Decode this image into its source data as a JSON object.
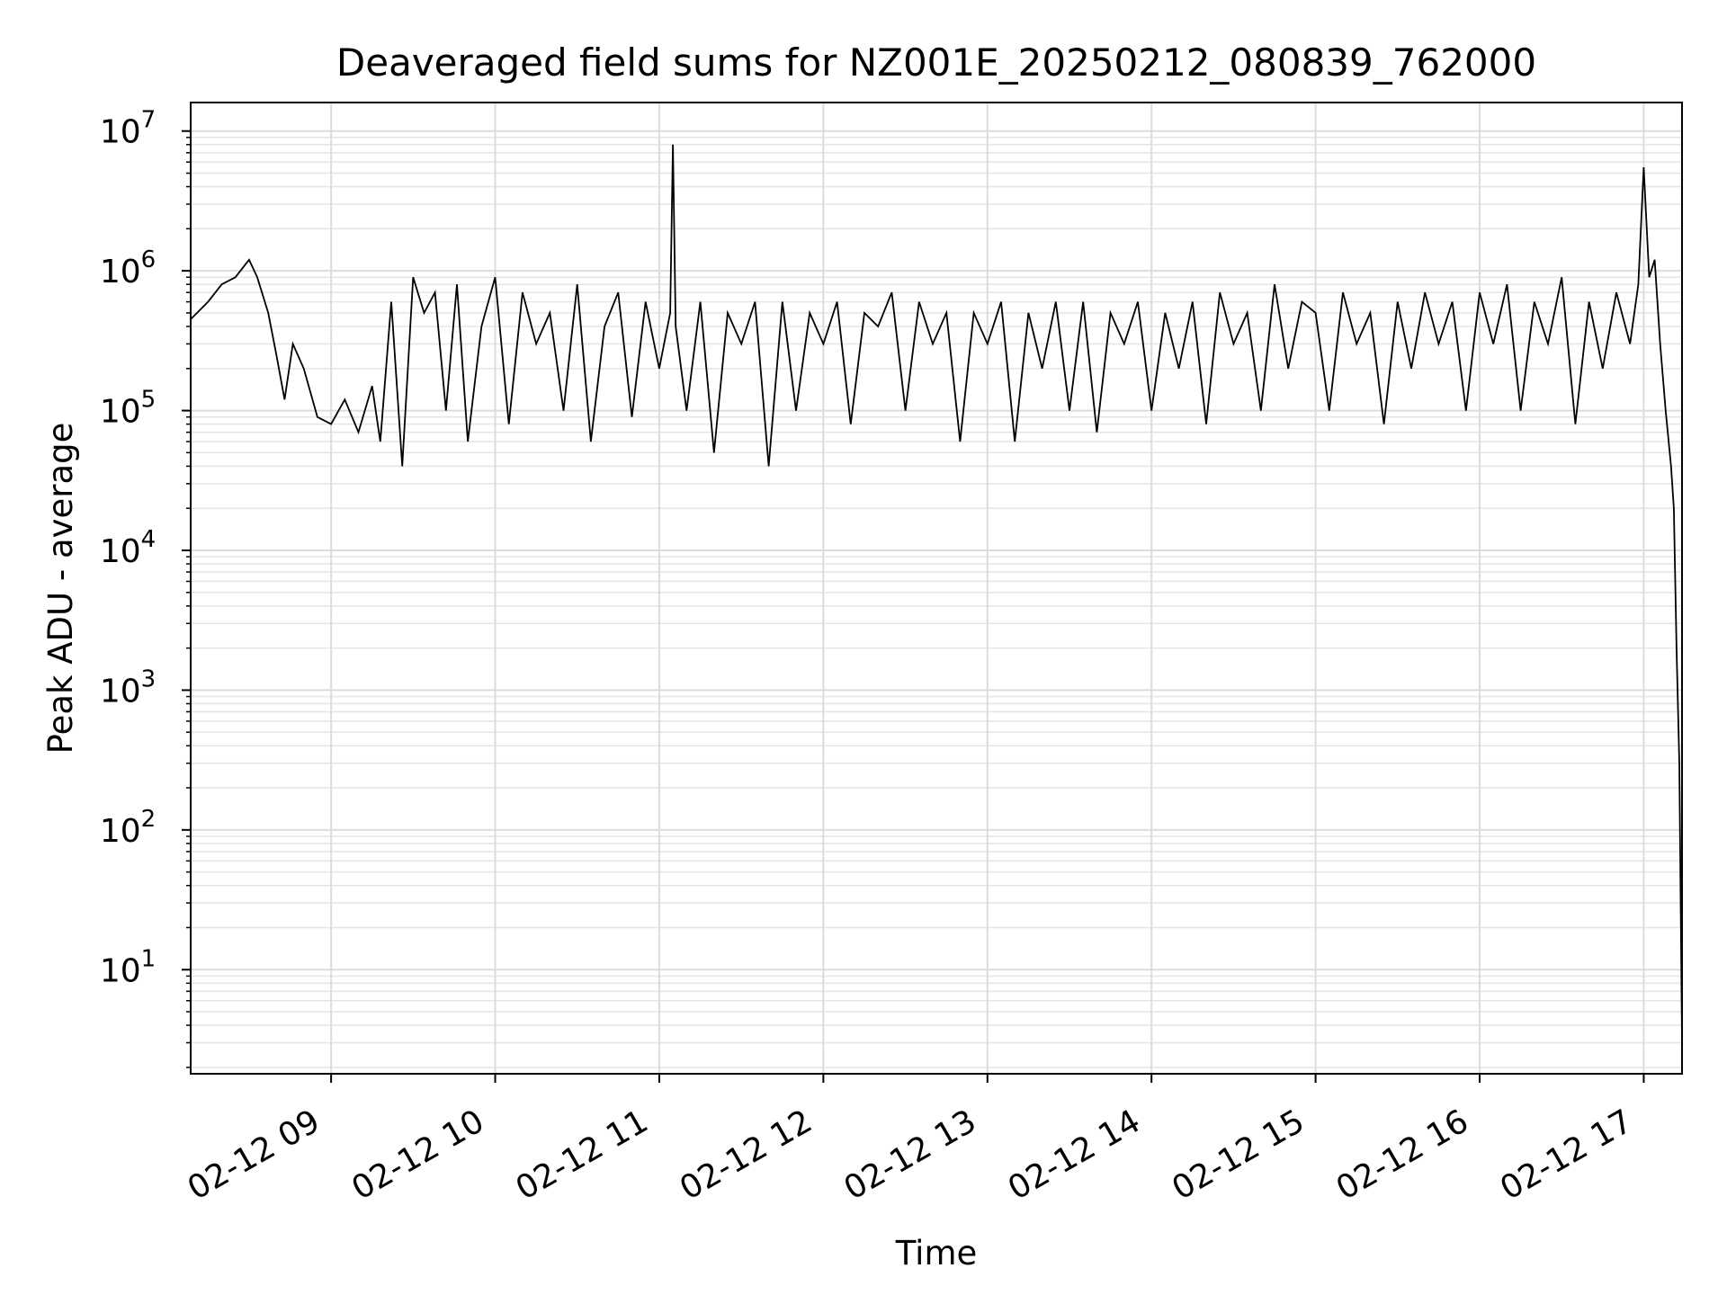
{
  "chart_data": {
    "type": "line",
    "title": "Deaveraged field sums for NZ001E_20250212_080839_762000",
    "xlabel": "Time",
    "ylabel": "Peak ADU - average",
    "x_scale": "time",
    "y_scale": "log",
    "xlim": [
      "2025-02-12 08:08:39",
      "2025-02-12 17:14:00"
    ],
    "ylim": [
      1.8,
      16000000
    ],
    "grid": true,
    "legend": "none",
    "x_ticks": [
      {
        "t": "2025-02-12 09:00",
        "label": "02-12 09"
      },
      {
        "t": "2025-02-12 10:00",
        "label": "02-12 10"
      },
      {
        "t": "2025-02-12 11:00",
        "label": "02-12 11"
      },
      {
        "t": "2025-02-12 12:00",
        "label": "02-12 12"
      },
      {
        "t": "2025-02-12 13:00",
        "label": "02-12 13"
      },
      {
        "t": "2025-02-12 14:00",
        "label": "02-12 14"
      },
      {
        "t": "2025-02-12 15:00",
        "label": "02-12 15"
      },
      {
        "t": "2025-02-12 16:00",
        "label": "02-12 16"
      },
      {
        "t": "2025-02-12 17:00",
        "label": "02-12 17"
      }
    ],
    "y_ticks": [
      {
        "value": 10,
        "base": "10",
        "exp": "1"
      },
      {
        "value": 100,
        "base": "10",
        "exp": "2"
      },
      {
        "value": 1000,
        "base": "10",
        "exp": "3"
      },
      {
        "value": 10000,
        "base": "10",
        "exp": "4"
      },
      {
        "value": 100000,
        "base": "10",
        "exp": "5"
      },
      {
        "value": 1000000,
        "base": "10",
        "exp": "6"
      },
      {
        "value": 10000000,
        "base": "10",
        "exp": "7"
      }
    ],
    "series": [
      {
        "color": "#000000",
        "x": [
          "2025-02-12 08:08:39",
          "2025-02-12 08:15",
          "2025-02-12 08:20",
          "2025-02-12 08:25",
          "2025-02-12 08:30",
          "2025-02-12 08:33",
          "2025-02-12 08:37",
          "2025-02-12 08:40",
          "2025-02-12 08:43",
          "2025-02-12 08:46",
          "2025-02-12 08:50",
          "2025-02-12 08:55",
          "2025-02-12 09:00",
          "2025-02-12 09:05",
          "2025-02-12 09:10",
          "2025-02-12 09:15",
          "2025-02-12 09:18",
          "2025-02-12 09:22",
          "2025-02-12 09:26",
          "2025-02-12 09:30",
          "2025-02-12 09:34",
          "2025-02-12 09:38",
          "2025-02-12 09:42",
          "2025-02-12 09:46",
          "2025-02-12 09:50",
          "2025-02-12 09:55",
          "2025-02-12 10:00",
          "2025-02-12 10:05",
          "2025-02-12 10:10",
          "2025-02-12 10:15",
          "2025-02-12 10:20",
          "2025-02-12 10:25",
          "2025-02-12 10:30",
          "2025-02-12 10:35",
          "2025-02-12 10:40",
          "2025-02-12 10:45",
          "2025-02-12 10:50",
          "2025-02-12 10:55",
          "2025-02-12 11:00",
          "2025-02-12 11:04",
          "2025-02-12 11:05",
          "2025-02-12 11:06",
          "2025-02-12 11:10",
          "2025-02-12 11:15",
          "2025-02-12 11:20",
          "2025-02-12 11:25",
          "2025-02-12 11:30",
          "2025-02-12 11:35",
          "2025-02-12 11:40",
          "2025-02-12 11:45",
          "2025-02-12 11:50",
          "2025-02-12 11:55",
          "2025-02-12 12:00",
          "2025-02-12 12:05",
          "2025-02-12 12:10",
          "2025-02-12 12:15",
          "2025-02-12 12:20",
          "2025-02-12 12:25",
          "2025-02-12 12:30",
          "2025-02-12 12:35",
          "2025-02-12 12:40",
          "2025-02-12 12:45",
          "2025-02-12 12:50",
          "2025-02-12 12:55",
          "2025-02-12 13:00",
          "2025-02-12 13:05",
          "2025-02-12 13:10",
          "2025-02-12 13:15",
          "2025-02-12 13:20",
          "2025-02-12 13:25",
          "2025-02-12 13:30",
          "2025-02-12 13:35",
          "2025-02-12 13:40",
          "2025-02-12 13:45",
          "2025-02-12 13:50",
          "2025-02-12 13:55",
          "2025-02-12 14:00",
          "2025-02-12 14:05",
          "2025-02-12 14:10",
          "2025-02-12 14:15",
          "2025-02-12 14:20",
          "2025-02-12 14:25",
          "2025-02-12 14:30",
          "2025-02-12 14:35",
          "2025-02-12 14:40",
          "2025-02-12 14:45",
          "2025-02-12 14:50",
          "2025-02-12 14:55",
          "2025-02-12 15:00",
          "2025-02-12 15:05",
          "2025-02-12 15:10",
          "2025-02-12 15:15",
          "2025-02-12 15:20",
          "2025-02-12 15:25",
          "2025-02-12 15:30",
          "2025-02-12 15:35",
          "2025-02-12 15:40",
          "2025-02-12 15:45",
          "2025-02-12 15:50",
          "2025-02-12 15:55",
          "2025-02-12 16:00",
          "2025-02-12 16:05",
          "2025-02-12 16:10",
          "2025-02-12 16:15",
          "2025-02-12 16:20",
          "2025-02-12 16:25",
          "2025-02-12 16:30",
          "2025-02-12 16:35",
          "2025-02-12 16:40",
          "2025-02-12 16:45",
          "2025-02-12 16:50",
          "2025-02-12 16:55",
          "2025-02-12 16:58",
          "2025-02-12 17:00",
          "2025-02-12 17:02",
          "2025-02-12 17:04",
          "2025-02-12 17:06",
          "2025-02-12 17:08",
          "2025-02-12 17:10",
          "2025-02-12 17:11",
          "2025-02-12 17:12",
          "2025-02-12 17:13",
          "2025-02-12 17:14"
        ],
        "y": [
          450000,
          600000,
          800000,
          900000,
          1200000,
          900000,
          500000,
          250000,
          120000,
          300000,
          200000,
          90000,
          80000,
          120000,
          70000,
          150000,
          60000,
          600000,
          40000,
          900000,
          500000,
          700000,
          100000,
          800000,
          60000,
          400000,
          900000,
          80000,
          700000,
          300000,
          500000,
          100000,
          800000,
          60000,
          400000,
          700000,
          90000,
          600000,
          200000,
          500000,
          8000000,
          400000,
          100000,
          600000,
          50000,
          500000,
          300000,
          600000,
          40000,
          600000,
          100000,
          500000,
          300000,
          600000,
          80000,
          500000,
          400000,
          700000,
          100000,
          600000,
          300000,
          500000,
          60000,
          500000,
          300000,
          600000,
          60000,
          500000,
          200000,
          600000,
          100000,
          600000,
          70000,
          500000,
          300000,
          600000,
          100000,
          500000,
          200000,
          600000,
          80000,
          700000,
          300000,
          500000,
          100000,
          800000,
          200000,
          600000,
          500000,
          100000,
          700000,
          300000,
          500000,
          80000,
          600000,
          200000,
          700000,
          300000,
          600000,
          100000,
          700000,
          300000,
          800000,
          100000,
          600000,
          300000,
          900000,
          80000,
          600000,
          200000,
          700000,
          300000,
          800000,
          5500000,
          900000,
          1200000,
          300000,
          100000,
          40000,
          20000,
          2000,
          300,
          3
        ]
      }
    ]
  }
}
